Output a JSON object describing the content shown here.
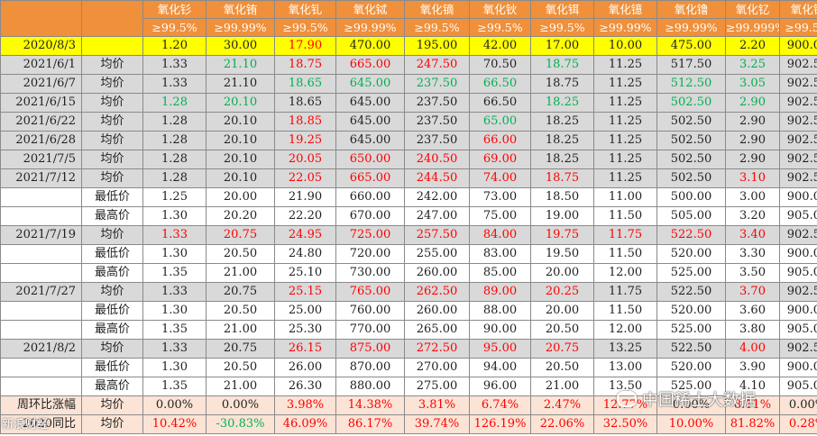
{
  "header": {
    "names": [
      "氧化钐",
      "氧化铕",
      "氧化钆",
      "氧化铽",
      "氧化镝",
      "氧化钬",
      "氧化铒",
      "氧化镱",
      "氧化镥",
      "氧化钇",
      "氧化钪"
    ],
    "purities": [
      "≥99.5%",
      "≥99.99%",
      "≥99.5%",
      "≥99.99%",
      "≥99.5%",
      "≥99.5%",
      "≥99.5%",
      "≥99.99%",
      "≥99.99%",
      "≥99.999%",
      "≥99.5%"
    ]
  },
  "rows": [
    {
      "style": "yellow",
      "date": "2020/8/3",
      "label": "",
      "cells": [
        [
          "1.20",
          ""
        ],
        [
          "30.00",
          ""
        ],
        [
          "17.90",
          "r"
        ],
        [
          "470.00",
          ""
        ],
        [
          "195.00",
          ""
        ],
        [
          "42.00",
          ""
        ],
        [
          "17.00",
          ""
        ],
        [
          "10.00",
          ""
        ],
        [
          "475.00",
          ""
        ],
        [
          "2.20",
          ""
        ],
        [
          "900.00",
          ""
        ]
      ]
    },
    {
      "style": "gray",
      "date": "2021/6/1",
      "label": "均价",
      "cells": [
        [
          "1.33",
          ""
        ],
        [
          "21.10",
          "g"
        ],
        [
          "18.75",
          "r"
        ],
        [
          "665.00",
          "r"
        ],
        [
          "247.50",
          "r"
        ],
        [
          "70.50",
          ""
        ],
        [
          "18.75",
          "g"
        ],
        [
          "11.25",
          ""
        ],
        [
          "517.50",
          ""
        ],
        [
          "3.25",
          "g"
        ],
        [
          "902.50",
          ""
        ]
      ]
    },
    {
      "style": "gray",
      "date": "2021/6/7",
      "label": "均价",
      "cells": [
        [
          "1.33",
          ""
        ],
        [
          "21.10",
          ""
        ],
        [
          "18.65",
          "g"
        ],
        [
          "645.00",
          "g"
        ],
        [
          "237.50",
          "g"
        ],
        [
          "66.50",
          "g"
        ],
        [
          "18.75",
          ""
        ],
        [
          "11.25",
          ""
        ],
        [
          "512.50",
          "g"
        ],
        [
          "3.05",
          "g"
        ],
        [
          "902.50",
          ""
        ]
      ]
    },
    {
      "style": "gray",
      "date": "2021/6/15",
      "label": "均价",
      "cells": [
        [
          "1.28",
          "g"
        ],
        [
          "20.10",
          "g"
        ],
        [
          "18.65",
          ""
        ],
        [
          "645.00",
          ""
        ],
        [
          "237.50",
          ""
        ],
        [
          "66.50",
          ""
        ],
        [
          "18.25",
          "g"
        ],
        [
          "11.25",
          ""
        ],
        [
          "502.50",
          "g"
        ],
        [
          "2.90",
          "g"
        ],
        [
          "902.50",
          ""
        ]
      ]
    },
    {
      "style": "gray",
      "date": "2021/6/22",
      "label": "均价",
      "cells": [
        [
          "1.28",
          ""
        ],
        [
          "20.10",
          ""
        ],
        [
          "18.85",
          "r"
        ],
        [
          "645.00",
          ""
        ],
        [
          "237.50",
          ""
        ],
        [
          "65.00",
          "g"
        ],
        [
          "18.25",
          ""
        ],
        [
          "11.25",
          ""
        ],
        [
          "502.50",
          ""
        ],
        [
          "2.90",
          ""
        ],
        [
          "902.50",
          ""
        ]
      ]
    },
    {
      "style": "gray",
      "date": "2021/6/28",
      "label": "均价",
      "cells": [
        [
          "1.28",
          ""
        ],
        [
          "20.10",
          ""
        ],
        [
          "19.25",
          "r"
        ],
        [
          "645.00",
          ""
        ],
        [
          "237.50",
          ""
        ],
        [
          "66.00",
          "r"
        ],
        [
          "18.25",
          ""
        ],
        [
          "11.25",
          ""
        ],
        [
          "502.50",
          ""
        ],
        [
          "2.90",
          ""
        ],
        [
          "902.50",
          ""
        ]
      ]
    },
    {
      "style": "gray",
      "date": "2021/7/5",
      "label": "均价",
      "cells": [
        [
          "1.28",
          ""
        ],
        [
          "20.10",
          ""
        ],
        [
          "20.05",
          "r"
        ],
        [
          "650.00",
          "r"
        ],
        [
          "240.50",
          "r"
        ],
        [
          "69.00",
          "r"
        ],
        [
          "18.25",
          ""
        ],
        [
          "11.25",
          ""
        ],
        [
          "502.50",
          ""
        ],
        [
          "2.90",
          ""
        ],
        [
          "902.50",
          ""
        ]
      ]
    },
    {
      "style": "gray",
      "date": "2021/7/12",
      "label": "均价",
      "cells": [
        [
          "1.28",
          ""
        ],
        [
          "20.10",
          ""
        ],
        [
          "22.05",
          "r"
        ],
        [
          "665.00",
          "r"
        ],
        [
          "244.50",
          "r"
        ],
        [
          "74.00",
          "r"
        ],
        [
          "18.75",
          "r"
        ],
        [
          "11.25",
          ""
        ],
        [
          "502.50",
          ""
        ],
        [
          "3.10",
          "r"
        ],
        [
          "902.50",
          ""
        ]
      ]
    },
    {
      "style": "white",
      "date": "",
      "label": "最低价",
      "cells": [
        [
          "1.25",
          ""
        ],
        [
          "20.00",
          ""
        ],
        [
          "21.90",
          ""
        ],
        [
          "660.00",
          ""
        ],
        [
          "242.00",
          ""
        ],
        [
          "73.00",
          ""
        ],
        [
          "18.50",
          ""
        ],
        [
          "11.00",
          ""
        ],
        [
          "500.00",
          ""
        ],
        [
          "3.00",
          ""
        ],
        [
          "900.00",
          ""
        ]
      ]
    },
    {
      "style": "white",
      "date": "",
      "label": "最高价",
      "cells": [
        [
          "1.30",
          ""
        ],
        [
          "20.20",
          ""
        ],
        [
          "22.20",
          ""
        ],
        [
          "670.00",
          ""
        ],
        [
          "247.00",
          ""
        ],
        [
          "75.00",
          ""
        ],
        [
          "19.00",
          ""
        ],
        [
          "11.50",
          ""
        ],
        [
          "505.00",
          ""
        ],
        [
          "3.20",
          ""
        ],
        [
          "905.00",
          ""
        ]
      ]
    },
    {
      "style": "gray",
      "date": "2021/7/19",
      "label": "均价",
      "cells": [
        [
          "1.33",
          "r"
        ],
        [
          "20.75",
          "r"
        ],
        [
          "24.95",
          "r"
        ],
        [
          "725.00",
          "r"
        ],
        [
          "257.50",
          "r"
        ],
        [
          "84.00",
          "r"
        ],
        [
          "19.75",
          "r"
        ],
        [
          "11.75",
          "r"
        ],
        [
          "522.50",
          "r"
        ],
        [
          "3.40",
          "r"
        ],
        [
          "902.50",
          ""
        ]
      ]
    },
    {
      "style": "white",
      "date": "",
      "label": "最低价",
      "cells": [
        [
          "1.30",
          ""
        ],
        [
          "20.50",
          ""
        ],
        [
          "24.80",
          ""
        ],
        [
          "720.00",
          ""
        ],
        [
          "255.00",
          ""
        ],
        [
          "83.00",
          ""
        ],
        [
          "19.50",
          ""
        ],
        [
          "11.50",
          ""
        ],
        [
          "520.00",
          ""
        ],
        [
          "3.30",
          ""
        ],
        [
          "900.00",
          ""
        ]
      ]
    },
    {
      "style": "white",
      "date": "",
      "label": "最高价",
      "cells": [
        [
          "1.35",
          ""
        ],
        [
          "21.00",
          ""
        ],
        [
          "25.10",
          ""
        ],
        [
          "730.00",
          ""
        ],
        [
          "260.00",
          ""
        ],
        [
          "85.00",
          ""
        ],
        [
          "20.00",
          ""
        ],
        [
          "12.00",
          ""
        ],
        [
          "525.00",
          ""
        ],
        [
          "3.50",
          ""
        ],
        [
          "905.00",
          ""
        ]
      ]
    },
    {
      "style": "gray",
      "date": "2021/7/27",
      "label": "均价",
      "cells": [
        [
          "1.33",
          ""
        ],
        [
          "20.75",
          ""
        ],
        [
          "25.15",
          "r"
        ],
        [
          "765.00",
          "r"
        ],
        [
          "262.50",
          "r"
        ],
        [
          "89.00",
          "r"
        ],
        [
          "20.25",
          "r"
        ],
        [
          "11.75",
          ""
        ],
        [
          "522.50",
          ""
        ],
        [
          "3.70",
          "r"
        ],
        [
          "902.50",
          ""
        ]
      ]
    },
    {
      "style": "white",
      "date": "",
      "label": "最低价",
      "cells": [
        [
          "1.30",
          ""
        ],
        [
          "20.50",
          ""
        ],
        [
          "25.00",
          ""
        ],
        [
          "760.00",
          ""
        ],
        [
          "260.00",
          ""
        ],
        [
          "88.00",
          ""
        ],
        [
          "20.00",
          ""
        ],
        [
          "11.50",
          ""
        ],
        [
          "520.00",
          ""
        ],
        [
          "3.60",
          ""
        ],
        [
          "900.00",
          ""
        ]
      ]
    },
    {
      "style": "white",
      "date": "",
      "label": "最高价",
      "cells": [
        [
          "1.35",
          ""
        ],
        [
          "21.00",
          ""
        ],
        [
          "25.30",
          ""
        ],
        [
          "770.00",
          ""
        ],
        [
          "265.00",
          ""
        ],
        [
          "90.00",
          ""
        ],
        [
          "20.50",
          ""
        ],
        [
          "12.00",
          ""
        ],
        [
          "525.00",
          ""
        ],
        [
          "3.80",
          ""
        ],
        [
          "905.00",
          ""
        ]
      ]
    },
    {
      "style": "gray",
      "date": "2021/8/2",
      "label": "均价",
      "cells": [
        [
          "1.33",
          ""
        ],
        [
          "20.75",
          ""
        ],
        [
          "26.15",
          "r"
        ],
        [
          "875.00",
          "r"
        ],
        [
          "272.50",
          "r"
        ],
        [
          "95.00",
          "r"
        ],
        [
          "20.75",
          "r"
        ],
        [
          "13.25",
          ""
        ],
        [
          "522.50",
          ""
        ],
        [
          "4.00",
          "r"
        ],
        [
          "902.50",
          ""
        ]
      ]
    },
    {
      "style": "white",
      "date": "",
      "label": "最低价",
      "cells": [
        [
          "1.30",
          ""
        ],
        [
          "20.50",
          ""
        ],
        [
          "26.00",
          ""
        ],
        [
          "870.00",
          ""
        ],
        [
          "270.00",
          ""
        ],
        [
          "94.00",
          ""
        ],
        [
          "20.50",
          ""
        ],
        [
          "13.00",
          ""
        ],
        [
          "520.00",
          ""
        ],
        [
          "3.90",
          ""
        ],
        [
          "900.00",
          ""
        ]
      ]
    },
    {
      "style": "white",
      "date": "",
      "label": "最高价",
      "cells": [
        [
          "1.35",
          ""
        ],
        [
          "21.00",
          ""
        ],
        [
          "26.30",
          ""
        ],
        [
          "880.00",
          ""
        ],
        [
          "275.00",
          ""
        ],
        [
          "96.00",
          ""
        ],
        [
          "21.00",
          ""
        ],
        [
          "13.50",
          ""
        ],
        [
          "525.00",
          ""
        ],
        [
          "4.10",
          ""
        ],
        [
          "905.00",
          ""
        ]
      ]
    },
    {
      "style": "pink",
      "date": "周环比涨幅",
      "label": "均价",
      "cells": [
        [
          "0.00%",
          ""
        ],
        [
          "0.00%",
          ""
        ],
        [
          "3.98%",
          "r"
        ],
        [
          "14.38%",
          "r"
        ],
        [
          "3.81%",
          "r"
        ],
        [
          "6.74%",
          "r"
        ],
        [
          "2.47%",
          "r"
        ],
        [
          "12.77%",
          "r"
        ],
        [
          "0.00%",
          ""
        ],
        [
          "8.11%",
          "r"
        ],
        [
          "0.00%",
          ""
        ]
      ]
    },
    {
      "style": "pink",
      "date": "2020同比",
      "label": "均价",
      "cells": [
        [
          "10.42%",
          "r"
        ],
        [
          "-30.83%",
          "g"
        ],
        [
          "46.09%",
          "r"
        ],
        [
          "86.17%",
          "r"
        ],
        [
          "39.74%",
          "r"
        ],
        [
          "126.19%",
          "r"
        ],
        [
          "22.06%",
          "r"
        ],
        [
          "32.50%",
          "r"
        ],
        [
          "10.00%",
          "r"
        ],
        [
          "81.82%",
          "r"
        ],
        [
          "0.28%",
          "r"
        ]
      ]
    }
  ],
  "watermark": "中国稀土大数据",
  "watermark2": "新浪财经"
}
